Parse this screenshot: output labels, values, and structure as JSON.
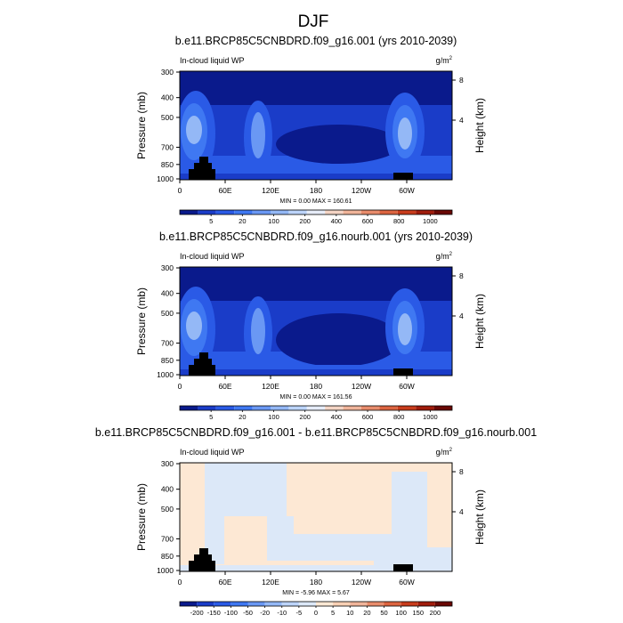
{
  "figure": {
    "title": "DJF"
  },
  "chart_data": [
    {
      "type": "heatmap",
      "title": "b.e11.BRCP85C5CNBDRD.f09_g16.001 (yrs 2010-2039)",
      "left_label": "In-cloud liquid WP",
      "units": "g/m2",
      "ylabel": "Pressure (mb)",
      "y2label": "Height (km)",
      "xticks": [
        "0",
        "60E",
        "120E",
        "180",
        "120W",
        "60W"
      ],
      "yticks": [
        "300",
        "400",
        "500",
        "700",
        "850",
        "1000"
      ],
      "y2ticks": [
        "8",
        "4"
      ],
      "ylim": [
        1000,
        300
      ],
      "stats": {
        "min_label": "MIN =",
        "min": "0.00",
        "max_label": "MAX =",
        "max": "160.61"
      },
      "colorbar": {
        "tick_labels": [
          "5",
          "20",
          "100",
          "200",
          "400",
          "600",
          "800",
          "1000"
        ],
        "colors": [
          "#0a1a8c",
          "#1a3cc8",
          "#2a5ae6",
          "#3f78f2",
          "#6a98f4",
          "#94b8f6",
          "#bcd4fa",
          "#e6ecf8",
          "#f4d4c4",
          "#f0b49a",
          "#e88c6c",
          "#dc6440",
          "#c83c1c",
          "#a01c0c",
          "#6a0804"
        ]
      }
    },
    {
      "type": "heatmap",
      "title": "b.e11.BRCP85C5CNBDRD.f09_g16.nourb.001 (yrs 2010-2039)",
      "left_label": "In-cloud liquid WP",
      "units": "g/m2",
      "ylabel": "Pressure (mb)",
      "y2label": "Height (km)",
      "xticks": [
        "0",
        "60E",
        "120E",
        "180",
        "120W",
        "60W"
      ],
      "yticks": [
        "300",
        "400",
        "500",
        "700",
        "850",
        "1000"
      ],
      "y2ticks": [
        "8",
        "4"
      ],
      "ylim": [
        1000,
        300
      ],
      "stats": {
        "min_label": "MIN =",
        "min": "0.00",
        "max_label": "MAX =",
        "max": "161.56"
      },
      "colorbar": {
        "tick_labels": [
          "5",
          "20",
          "100",
          "200",
          "400",
          "600",
          "800",
          "1000"
        ],
        "colors": [
          "#0a1a8c",
          "#1a3cc8",
          "#2a5ae6",
          "#3f78f2",
          "#6a98f4",
          "#94b8f6",
          "#bcd4fa",
          "#e6ecf8",
          "#f4d4c4",
          "#f0b49a",
          "#e88c6c",
          "#dc6440",
          "#c83c1c",
          "#a01c0c",
          "#6a0804"
        ]
      }
    },
    {
      "type": "heatmap",
      "title": "b.e11.BRCP85C5CNBDRD.f09_g16.001 - b.e11.BRCP85C5CNBDRD.f09_g16.nourb.001",
      "left_label": "In-cloud liquid WP",
      "units": "g/m2",
      "ylabel": "Pressure (mb)",
      "y2label": "Height (km)",
      "xticks": [
        "0",
        "60E",
        "120E",
        "180",
        "120W",
        "60W"
      ],
      "yticks": [
        "300",
        "400",
        "500",
        "700",
        "850",
        "1000"
      ],
      "y2ticks": [
        "8",
        "4"
      ],
      "ylim": [
        1000,
        300
      ],
      "stats": {
        "min_label": "MIN =",
        "min": "-5.96",
        "max_label": "MAX =",
        "max": "5.67"
      },
      "colorbar": {
        "tick_labels": [
          "-200",
          "-150",
          "-100",
          "-50",
          "-20",
          "-10",
          "-5",
          "0",
          "5",
          "10",
          "20",
          "50",
          "100",
          "150",
          "200"
        ],
        "colors": [
          "#0a1a8c",
          "#1a3cc8",
          "#2a5ae6",
          "#3f78f2",
          "#6a98f4",
          "#94b8f6",
          "#bcd4fa",
          "#dce8f8",
          "#fde8d4",
          "#f8d0b4",
          "#f0b49a",
          "#e88c6c",
          "#dc6440",
          "#c83c1c",
          "#a01c0c",
          "#6a0804"
        ]
      }
    }
  ]
}
